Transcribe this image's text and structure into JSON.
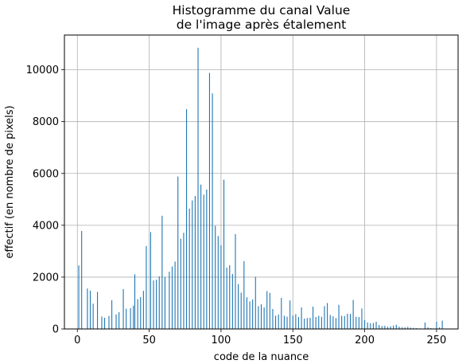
{
  "chart_data": {
    "type": "bar",
    "title_lines": [
      "Histogramme du canal Value",
      "de l'image après étalement"
    ],
    "xlabel": "code de la nuance",
    "ylabel": "effectif (en nombre de pixels)",
    "xlim": [
      -9,
      265
    ],
    "ylim": [
      0,
      11340
    ],
    "xticks": [
      0,
      50,
      100,
      150,
      200,
      250
    ],
    "yticks": [
      0,
      2000,
      4000,
      6000,
      8000,
      10000
    ],
    "grid": true,
    "bar_color": "#1f77b4",
    "x": [
      1,
      3,
      7,
      9,
      11,
      14,
      17,
      19,
      22,
      24,
      27,
      29,
      32,
      34,
      37,
      39,
      40,
      42,
      44,
      46,
      48,
      51,
      53,
      55,
      57,
      59,
      61,
      64,
      66,
      68,
      70,
      72,
      74,
      76,
      78,
      80,
      82,
      84,
      86,
      88,
      90,
      92,
      94,
      96,
      98,
      100,
      102,
      104,
      106,
      108,
      110,
      112,
      114,
      116,
      118,
      120,
      122,
      124,
      126,
      128,
      130,
      132,
      134,
      136,
      138,
      140,
      142,
      144,
      146,
      148,
      150,
      152,
      154,
      156,
      158,
      160,
      162,
      164,
      166,
      168,
      170,
      172,
      174,
      176,
      178,
      180,
      182,
      184,
      186,
      188,
      190,
      192,
      194,
      196,
      198,
      200,
      202,
      204,
      206,
      208,
      210,
      212,
      214,
      216,
      218,
      220,
      222,
      224,
      226,
      228,
      230,
      232,
      234,
      236,
      238,
      240,
      242,
      244,
      246,
      248,
      250,
      252,
      254
    ],
    "values": [
      2450,
      3780,
      1560,
      1480,
      980,
      1430,
      480,
      430,
      500,
      1110,
      560,
      650,
      1540,
      780,
      800,
      900,
      2110,
      1150,
      1230,
      1470,
      3200,
      3740,
      1870,
      1900,
      2030,
      4370,
      2000,
      2210,
      2410,
      2600,
      5880,
      3480,
      3710,
      8480,
      4640,
      4960,
      5130,
      10850,
      5570,
      5180,
      5380,
      9880,
      9090,
      3980,
      3590,
      3230,
      5760,
      2370,
      2460,
      2120,
      3660,
      1730,
      1400,
      2620,
      1220,
      1060,
      1140,
      2010,
      880,
      950,
      830,
      1460,
      1390,
      770,
      510,
      560,
      1200,
      510,
      470,
      1100,
      520,
      570,
      460,
      830,
      400,
      420,
      430,
      860,
      460,
      510,
      470,
      880,
      1000,
      540,
      490,
      420,
      930,
      510,
      500,
      590,
      580,
      1120,
      470,
      460,
      790,
      340,
      250,
      220,
      230,
      280,
      150,
      110,
      120,
      80,
      100,
      130,
      160,
      90,
      70,
      60,
      80,
      50,
      40,
      30,
      20,
      10,
      250,
      60,
      30,
      20,
      280,
      60,
      320
    ]
  }
}
